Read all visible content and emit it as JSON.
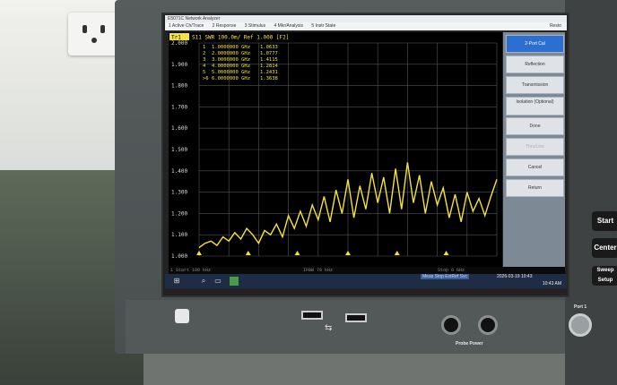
{
  "window": {
    "title": "E5071C Network Analyzer",
    "menu": [
      "1 Active Ch/Trace",
      "2 Response",
      "3 Stimulus",
      "4 Mkr/Analysis",
      "5 Instr State"
    ],
    "restore_label": "Resto"
  },
  "trace": {
    "label_box": "Tr1",
    "header": "S11 SWR 100.0m/ Ref 1.000 [F2]"
  },
  "markers": [
    {
      "id": "1",
      "freq": "1.0000000 GHz",
      "value": "1.0633"
    },
    {
      "id": "2",
      "freq": "2.0000000 GHz",
      "value": "1.0777"
    },
    {
      "id": "3",
      "freq": "3.0000000 GHz",
      "value": "1.4115"
    },
    {
      "id": "4",
      "freq": "4.0000000 GHz",
      "value": "1.2814"
    },
    {
      "id": "5",
      "freq": "5.0000000 GHz",
      "value": "1.2431"
    },
    {
      "id": ">6",
      "freq": "6.0000000 GHz",
      "value": "1.3638"
    }
  ],
  "chart_data": {
    "type": "line",
    "title": "",
    "ylim": [
      1.0,
      2.0
    ],
    "yticks": [
      "2.000",
      "1.900",
      "1.800",
      "1.700",
      "1.600",
      "1.500",
      "1.400",
      "1.300",
      "1.200",
      "1.100",
      "1.000"
    ],
    "series": [
      {
        "color": "#f4e23a",
        "points": [
          [
            0.0,
            1.04
          ],
          [
            0.02,
            1.06
          ],
          [
            0.04,
            1.07
          ],
          [
            0.06,
            1.05
          ],
          [
            0.08,
            1.09
          ],
          [
            0.1,
            1.07
          ],
          [
            0.12,
            1.11
          ],
          [
            0.14,
            1.08
          ],
          [
            0.16,
            1.13
          ],
          [
            0.18,
            1.1
          ],
          [
            0.2,
            1.06
          ],
          [
            0.22,
            1.12
          ],
          [
            0.24,
            1.1
          ],
          [
            0.26,
            1.15
          ],
          [
            0.28,
            1.09
          ],
          [
            0.3,
            1.19
          ],
          [
            0.32,
            1.13
          ],
          [
            0.34,
            1.21
          ],
          [
            0.36,
            1.14
          ],
          [
            0.38,
            1.24
          ],
          [
            0.4,
            1.17
          ],
          [
            0.42,
            1.28
          ],
          [
            0.44,
            1.16
          ],
          [
            0.46,
            1.31
          ],
          [
            0.48,
            1.2
          ],
          [
            0.5,
            1.36
          ],
          [
            0.52,
            1.18
          ],
          [
            0.54,
            1.33
          ],
          [
            0.56,
            1.22
          ],
          [
            0.58,
            1.39
          ],
          [
            0.6,
            1.25
          ],
          [
            0.62,
            1.37
          ],
          [
            0.64,
            1.2
          ],
          [
            0.66,
            1.41
          ],
          [
            0.68,
            1.22
          ],
          [
            0.7,
            1.44
          ],
          [
            0.72,
            1.25
          ],
          [
            0.74,
            1.38
          ],
          [
            0.76,
            1.2
          ],
          [
            0.78,
            1.35
          ],
          [
            0.8,
            1.24
          ],
          [
            0.82,
            1.32
          ],
          [
            0.84,
            1.18
          ],
          [
            0.86,
            1.29
          ],
          [
            0.88,
            1.16
          ],
          [
            0.9,
            1.3
          ],
          [
            0.92,
            1.21
          ],
          [
            0.94,
            1.27
          ],
          [
            0.96,
            1.19
          ],
          [
            0.98,
            1.28
          ],
          [
            1.0,
            1.36
          ]
        ]
      }
    ],
    "marker_positions": [
      0.0,
      0.165,
      0.33,
      0.5,
      0.665,
      0.83
    ]
  },
  "status": {
    "start": "1 Start 100 kHz",
    "ifbw": "IFBW 70 kHz",
    "stop": "Stop 6 GHz",
    "flags": "Meas  Stop  ExtRef  Svc",
    "datetime": "2026-03-19 10:43"
  },
  "softkeys": {
    "items": [
      {
        "label": "2-Port Cal",
        "state": "active"
      },
      {
        "label": "Reflection",
        "state": "normal"
      },
      {
        "label": "Transmission",
        "state": "normal"
      },
      {
        "label": "Isolation (Optional)",
        "state": "normal"
      },
      {
        "label": "Done",
        "state": "normal"
      },
      {
        "label": "Thru/Line",
        "state": "dim"
      },
      {
        "label": "Cancel",
        "state": "normal"
      },
      {
        "label": "Return",
        "state": "normal"
      }
    ]
  },
  "taskbar": {
    "clock_time": "10:43 AM",
    "clock_date": "3/19/2026"
  },
  "panel": {
    "start_key": "Start",
    "center_key": "Center",
    "sweep_key": "Sweep Setup",
    "probe_power": "Probe Power",
    "port1": "Port 1"
  }
}
